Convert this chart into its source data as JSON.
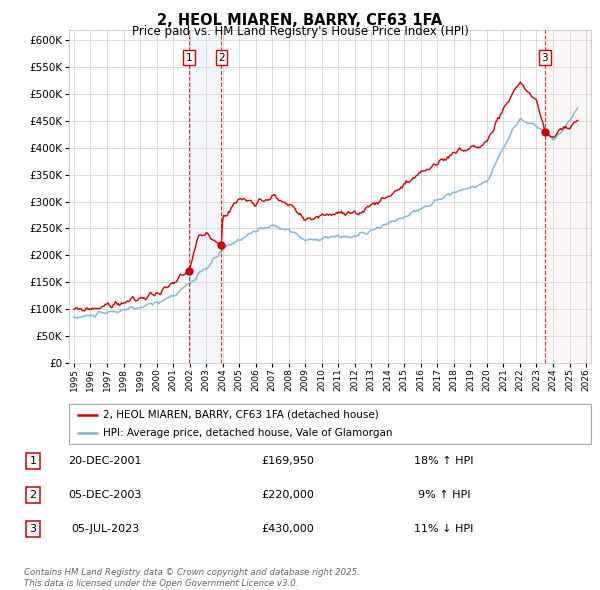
{
  "title": "2, HEOL MIAREN, BARRY, CF63 1FA",
  "subtitle": "Price paid vs. HM Land Registry's House Price Index (HPI)",
  "ylim": [
    0,
    620000
  ],
  "yticks": [
    0,
    50000,
    100000,
    150000,
    200000,
    250000,
    300000,
    350000,
    400000,
    450000,
    500000,
    550000,
    600000
  ],
  "xlim_start": 1994.7,
  "xlim_end": 2026.3,
  "hpi_color": "#7bafd4",
  "price_color": "#cc0000",
  "bg_color": "#ffffff",
  "grid_color": "#cccccc",
  "shade_blue_color": "#ccdff0",
  "shade_pink_color": "#f5e0e0",
  "sale_markers": [
    {
      "date_num": 2001.97,
      "price": 169950,
      "label": "1"
    },
    {
      "date_num": 2003.93,
      "price": 220000,
      "label": "2"
    },
    {
      "date_num": 2023.51,
      "price": 430000,
      "label": "3"
    }
  ],
  "legend_line1": "2, HEOL MIAREN, BARRY, CF63 1FA (detached house)",
  "legend_line2": "HPI: Average price, detached house, Vale of Glamorgan",
  "table_data": [
    {
      "num": "1",
      "date": "20-DEC-2001",
      "price": "£169,950",
      "pct": "18% ↑ HPI"
    },
    {
      "num": "2",
      "date": "05-DEC-2003",
      "price": "£220,000",
      "pct": "9% ↑ HPI"
    },
    {
      "num": "3",
      "date": "05-JUL-2023",
      "price": "£430,000",
      "pct": "11% ↓ HPI"
    }
  ],
  "footer": "Contains HM Land Registry data © Crown copyright and database right 2025.\nThis data is licensed under the Open Government Licence v3.0.",
  "hpi_key_years": [
    1995,
    1996,
    1997,
    1998,
    1999,
    2000,
    2001,
    2002,
    2003,
    2004,
    2005,
    2006,
    2007,
    2008,
    2009,
    2010,
    2011,
    2012,
    2013,
    2014,
    2015,
    2016,
    2017,
    2018,
    2019,
    2020,
    2021,
    2022,
    2023,
    2023.5,
    2024,
    2024.5,
    2025,
    2025.5
  ],
  "hpi_key_vals": [
    83000,
    88000,
    93000,
    98000,
    103000,
    112000,
    125000,
    148000,
    175000,
    210000,
    230000,
    245000,
    255000,
    248000,
    228000,
    232000,
    235000,
    235000,
    245000,
    258000,
    272000,
    285000,
    302000,
    318000,
    325000,
    338000,
    400000,
    455000,
    440000,
    430000,
    415000,
    430000,
    450000,
    475000
  ],
  "price_key_years": [
    1995,
    1996,
    1997,
    1998,
    1999,
    2000,
    2001,
    2001.97,
    2002.5,
    2003,
    2003.93,
    2004,
    2005,
    2006,
    2007,
    2008,
    2009,
    2010,
    2011,
    2012,
    2013,
    2014,
    2015,
    2016,
    2017,
    2018,
    2019,
    2020,
    2021,
    2022,
    2023,
    2023.51,
    2024,
    2024.5,
    2025,
    2025.5
  ],
  "price_key_vals": [
    97000,
    101000,
    106000,
    112000,
    119000,
    130000,
    145000,
    169950,
    230000,
    240000,
    220000,
    270000,
    305000,
    300000,
    310000,
    295000,
    265000,
    275000,
    278000,
    272000,
    295000,
    310000,
    330000,
    352000,
    372000,
    390000,
    398000,
    410000,
    475000,
    520000,
    490000,
    430000,
    415000,
    435000,
    440000,
    445000
  ]
}
